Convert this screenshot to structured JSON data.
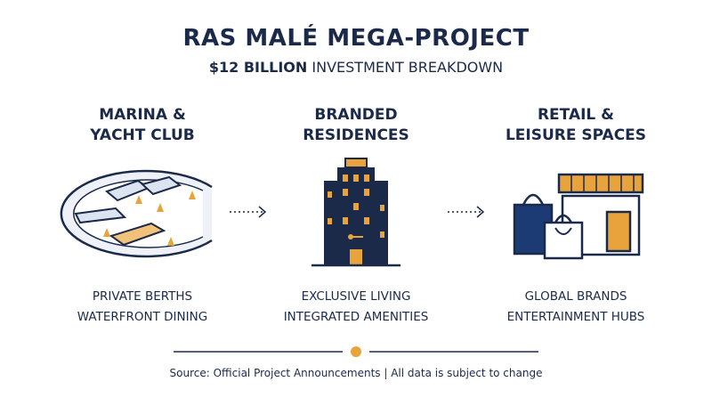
{
  "header": {
    "title": "RAS MALÉ MEGA-PROJECT",
    "subtitle_emphasis": "$12 BILLION",
    "subtitle": "INVESTMENT BREAKDOWN"
  },
  "columns": [
    {
      "title_lines": [
        "MARINA &",
        "YACHT CLUB"
      ],
      "features": [
        "PRIVATE BERTHS",
        "WATERFRONT DINING"
      ]
    },
    {
      "title_lines": [
        "BRANDED",
        "RESIDENCES"
      ],
      "features": [
        "EXCLUSIVE LIVING",
        "INTEGRATED AMENITIES"
      ]
    },
    {
      "title_lines": [
        "RETAIL &",
        "LEISURE SPACES"
      ],
      "features": [
        "GLOBAL BRANDS",
        "ENTERTAINMENT HUBS"
      ]
    }
  ],
  "footer": {
    "source": "Source: Official Project Announcements | All data is subject to change"
  }
}
